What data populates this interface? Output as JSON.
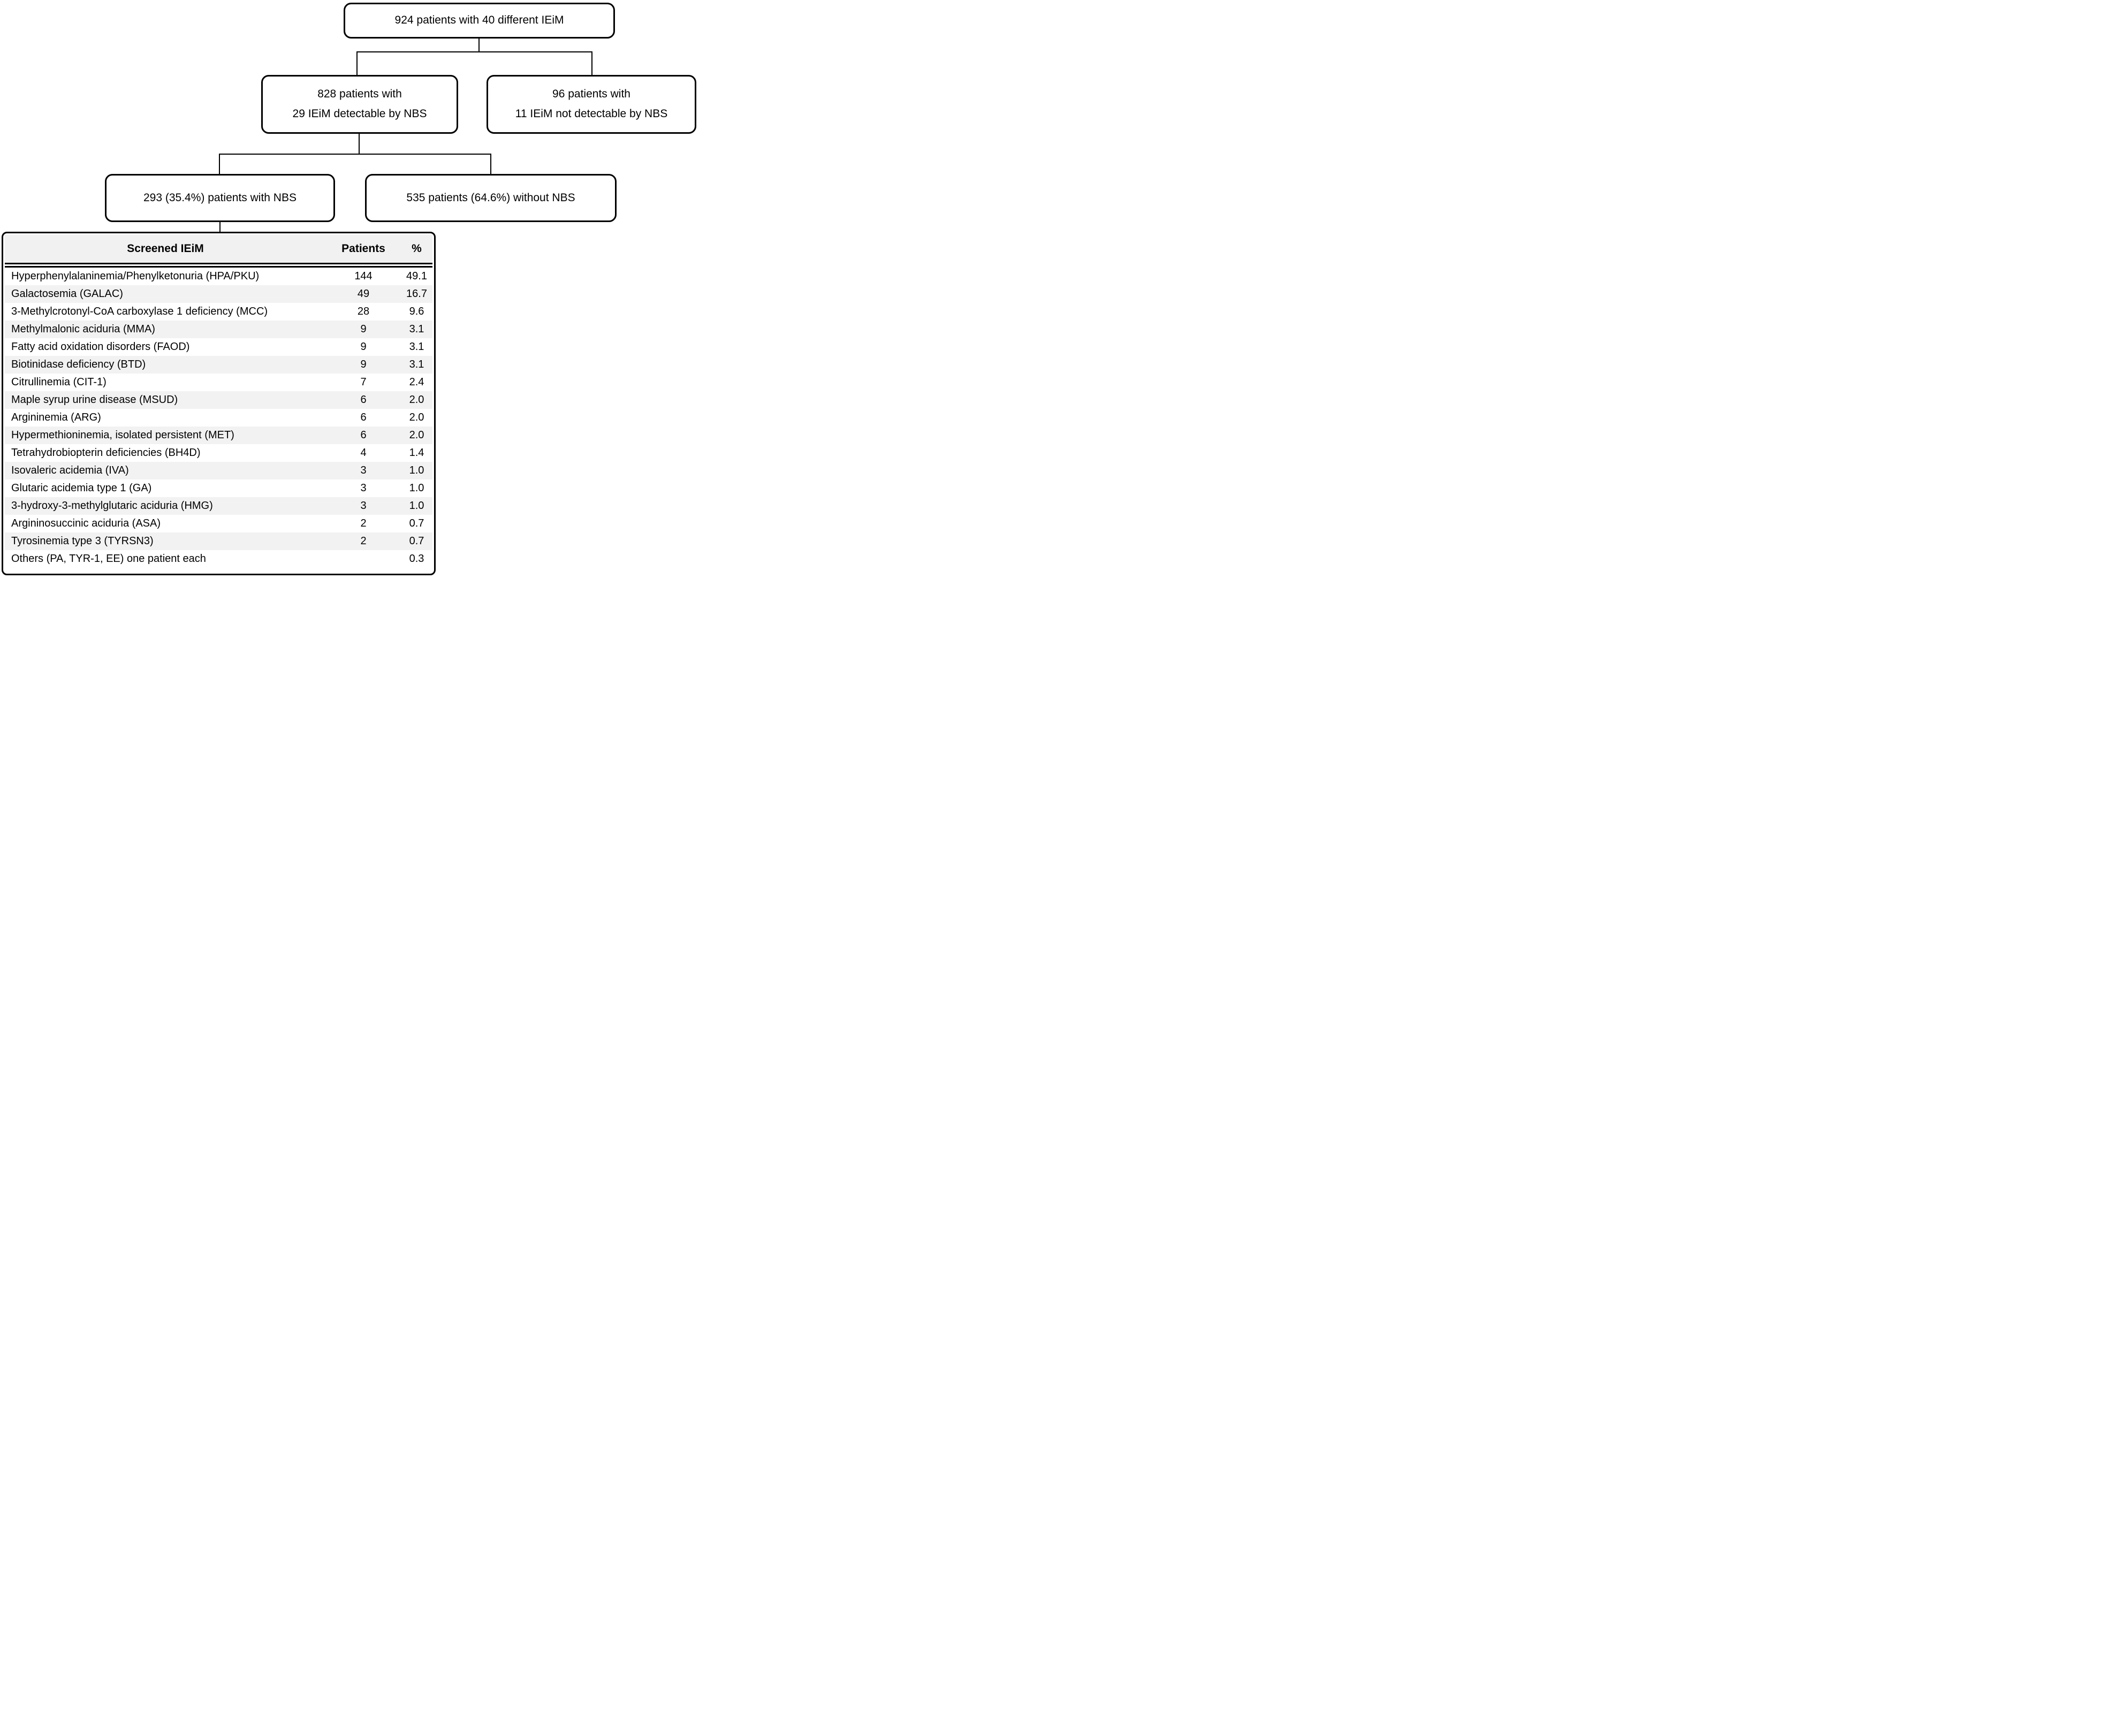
{
  "figure": {
    "root_box": "924 patients with 40 different IEiM",
    "detectable_box": {
      "line1": "828 patients with",
      "line2": "29 IEiM detectable by NBS"
    },
    "not_detectable_box": {
      "line1": "96 patients with",
      "line2": "11 IEiM not detectable by NBS"
    },
    "nbs_box": "293 (35.4%) patients with NBS",
    "no_nbs_box": "535 patients (64.6%) without NBS"
  },
  "table": {
    "header": {
      "screened": "Screened IEiM",
      "patients": "Patients",
      "percent": "%"
    },
    "rows": [
      {
        "name": "Hyperphenylalaninemia/Phenylketonuria (HPA/PKU)",
        "patients": "144",
        "percent": "49.1"
      },
      {
        "name": "Galactosemia (GALAC)",
        "patients": "49",
        "percent": "16.7"
      },
      {
        "name": "3-Methylcrotonyl-CoA carboxylase 1 deficiency (MCC)",
        "patients": "28",
        "percent": "9.6"
      },
      {
        "name": "Methylmalonic aciduria (MMA)",
        "patients": "9",
        "percent": "3.1"
      },
      {
        "name": "Fatty acid oxidation disorders (FAOD)",
        "patients": "9",
        "percent": "3.1"
      },
      {
        "name": "Biotinidase deficiency (BTD)",
        "patients": "9",
        "percent": "3.1"
      },
      {
        "name": "Citrullinemia (CIT-1)",
        "patients": "7",
        "percent": "2.4"
      },
      {
        "name": "Maple syrup urine disease (MSUD)",
        "patients": "6",
        "percent": "2.0"
      },
      {
        "name": "Argininemia (ARG)",
        "patients": "6",
        "percent": "2.0"
      },
      {
        "name": "Hypermethioninemia, isolated persistent (MET)",
        "patients": "6",
        "percent": "2.0"
      },
      {
        "name": "Tetrahydrobiopterin deficiencies (BH4D)",
        "patients": "4",
        "percent": "1.4"
      },
      {
        "name": "Isovaleric acidemia (IVA)",
        "patients": "3",
        "percent": "1.0"
      },
      {
        "name": "Glutaric acidemia type 1 (GA)",
        "patients": "3",
        "percent": "1.0"
      },
      {
        "name": "3-hydroxy-3-methylglutaric aciduria (HMG)",
        "patients": "3",
        "percent": "1.0"
      },
      {
        "name": "Argininosuccinic aciduria (ASA)",
        "patients": "2",
        "percent": "0.7"
      },
      {
        "name": "Tyrosinemia type 3 (TYRSN3)",
        "patients": "2",
        "percent": "0.7"
      },
      {
        "name": "Others (PA, TYR-1, EE) one patient each",
        "patients": "",
        "percent": "0.3"
      }
    ]
  },
  "colors": {
    "text": "#000000",
    "box_border": "#000000",
    "connector_line": "#000000",
    "header_background": "#f1f1f1",
    "row_stripe": "#f2f2f2",
    "background": "#ffffff"
  }
}
